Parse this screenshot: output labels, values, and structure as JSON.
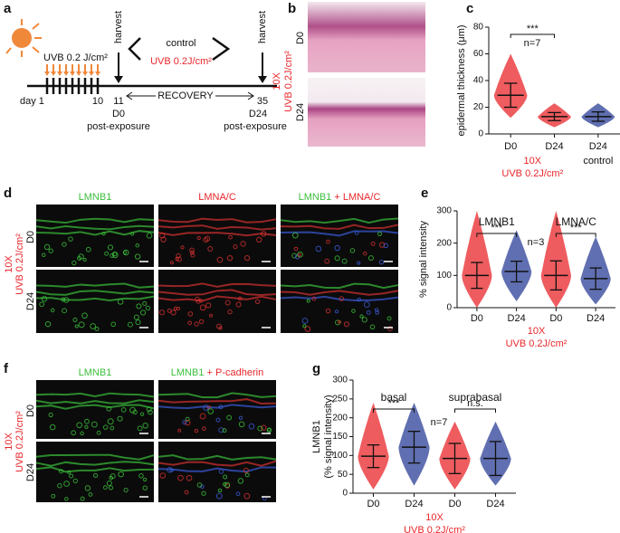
{
  "panel_a": {
    "label": "a",
    "dose": "UVB 0.2 J/cm²",
    "harvest_1": "harvest",
    "harvest_2": "harvest",
    "control": "control",
    "treatment": "UVB 0.2J/cm²",
    "day_start": "day 1",
    "day_10": "10",
    "day_11": "11",
    "day_35": "35",
    "d0": "D0",
    "d24": "D24",
    "recovery": "RECOVERY",
    "post_1": "post-exposure",
    "post_2": "post-exposure"
  },
  "panel_b": {
    "label": "b",
    "rows": [
      "D0",
      "D24"
    ],
    "treatment": [
      "10X",
      "UVB 0.2J/cm²"
    ]
  },
  "panel_d": {
    "label": "d",
    "headers": [
      "LMNB1",
      "LMNA/C"
    ],
    "merge": [
      "LMNB1",
      "+ LMNA/C"
    ],
    "rows": [
      "D0",
      "D24"
    ],
    "treatment": [
      "10X",
      "UVB 0.2J/cm²"
    ]
  },
  "panel_f": {
    "label": "f",
    "headers": [
      "LMNB1"
    ],
    "merge": [
      "LMNB1",
      "+ P-cadherin"
    ],
    "rows": [
      "D0",
      "D24"
    ],
    "treatment": [
      "10X",
      "UVB 0.2J/cm²"
    ]
  },
  "chart_data": [
    {
      "type": "dotplot",
      "panel": "c",
      "ylabel": [
        "epidermal thickness (μm)"
      ],
      "categories": [
        "D0",
        "D24",
        "D24"
      ],
      "colors": [
        "#e8262a",
        "#e8262a",
        "#2b3f97"
      ],
      "values": [
        29,
        13,
        13
      ],
      "errors": [
        9,
        3,
        3.5
      ],
      "ranges": [
        [
          12,
          60
        ],
        [
          5,
          23
        ],
        [
          5,
          23
        ]
      ],
      "ylim": [
        0,
        80
      ],
      "yticks": [
        0,
        20,
        40,
        60,
        80
      ],
      "stars": [
        "***"
      ],
      "n": "n=7",
      "group_labels": [
        [
          "10X",
          "UVB 0.2J/cm²"
        ],
        [
          "control"
        ]
      ]
    },
    {
      "type": "dotplot",
      "panel": "e",
      "ylabel": [
        "% signal intensity"
      ],
      "headers": [
        "LMNB1",
        "LMNA/C"
      ],
      "categories": [
        "D0",
        "D24",
        "D0",
        "D24"
      ],
      "colors": [
        "#e8262a",
        "#2b3f97",
        "#e8262a",
        "#2b3f97"
      ],
      "values": [
        100,
        112,
        100,
        90
      ],
      "errors": [
        40,
        32,
        45,
        33
      ],
      "ranges": [
        [
          0,
          300
        ],
        [
          20,
          240
        ],
        [
          0,
          300
        ],
        [
          10,
          220
        ]
      ],
      "ylim": [
        0,
        300
      ],
      "yticks": [
        0,
        100,
        200,
        300
      ],
      "stars": [
        "***",
        "***"
      ],
      "n": "n=3",
      "group_labels": [
        [
          "10X",
          "UVB 0.2J/cm²"
        ]
      ]
    },
    {
      "type": "dotplot",
      "panel": "g",
      "ylabel": [
        "LMNB1",
        "(% signal intensity)"
      ],
      "headers": [
        "basal",
        "suprabasal"
      ],
      "categories": [
        "D0",
        "D24",
        "D0",
        "D24"
      ],
      "colors": [
        "#e8262a",
        "#2b3f97",
        "#e8262a",
        "#2b3f97"
      ],
      "values": [
        98,
        122,
        92,
        92
      ],
      "errors": [
        30,
        42,
        40,
        45
      ],
      "ranges": [
        [
          10,
          240
        ],
        [
          20,
          240
        ],
        [
          10,
          190
        ],
        [
          20,
          190
        ]
      ],
      "ylim": [
        0,
        300
      ],
      "yticks": [
        0,
        50,
        100,
        150,
        200,
        250,
        300
      ],
      "stars": [
        "***",
        "n.s."
      ],
      "n": "n=7",
      "group_labels": [
        [
          "10X",
          "UVB 0.2J/cm²"
        ]
      ]
    }
  ]
}
